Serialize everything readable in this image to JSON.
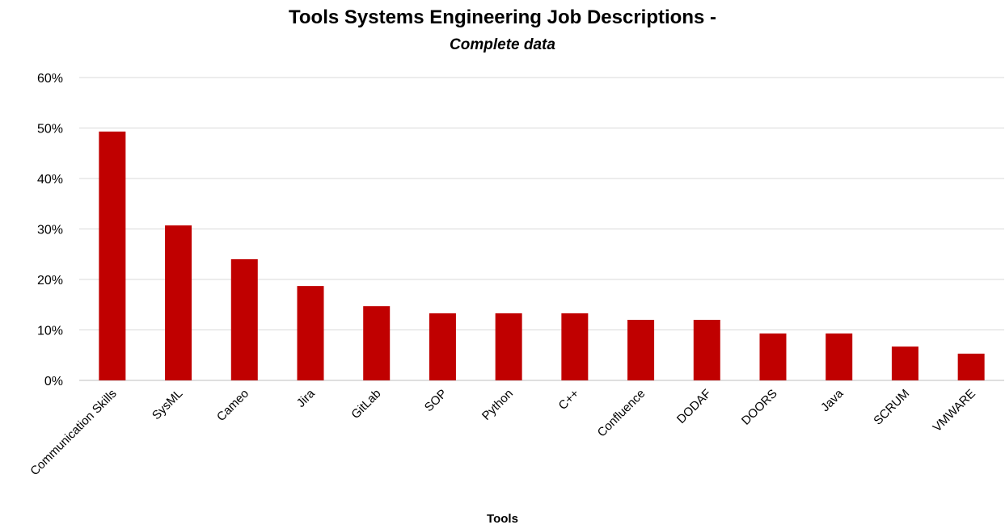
{
  "chart_data": {
    "type": "bar",
    "title": "Tools Systems Engineering Job Descriptions -",
    "subtitle": "Complete data",
    "xlabel": "Tools",
    "ylabel": "",
    "categories": [
      "Communication Skills",
      "SysML",
      "Cameo",
      "Jira",
      "GitLab",
      "SOP",
      "Python",
      "C++",
      "Confluence",
      "DODAF",
      "DOORS",
      "Java",
      "SCRUM",
      "VMWARE"
    ],
    "values": [
      49.3,
      30.7,
      24.0,
      18.7,
      14.7,
      13.3,
      13.3,
      13.3,
      12.0,
      12.0,
      9.3,
      9.3,
      6.7,
      5.3
    ],
    "ylim": [
      0,
      60
    ],
    "yticks": [
      0,
      10,
      20,
      30,
      40,
      50,
      60
    ],
    "ytick_labels": [
      "0%",
      "10%",
      "20%",
      "30%",
      "40%",
      "50%",
      "60%"
    ],
    "grid": true,
    "legend": "none",
    "colors": {
      "bar": "#c00000",
      "grid": "#d9d9d9",
      "axis": "#bfbfbf"
    }
  }
}
